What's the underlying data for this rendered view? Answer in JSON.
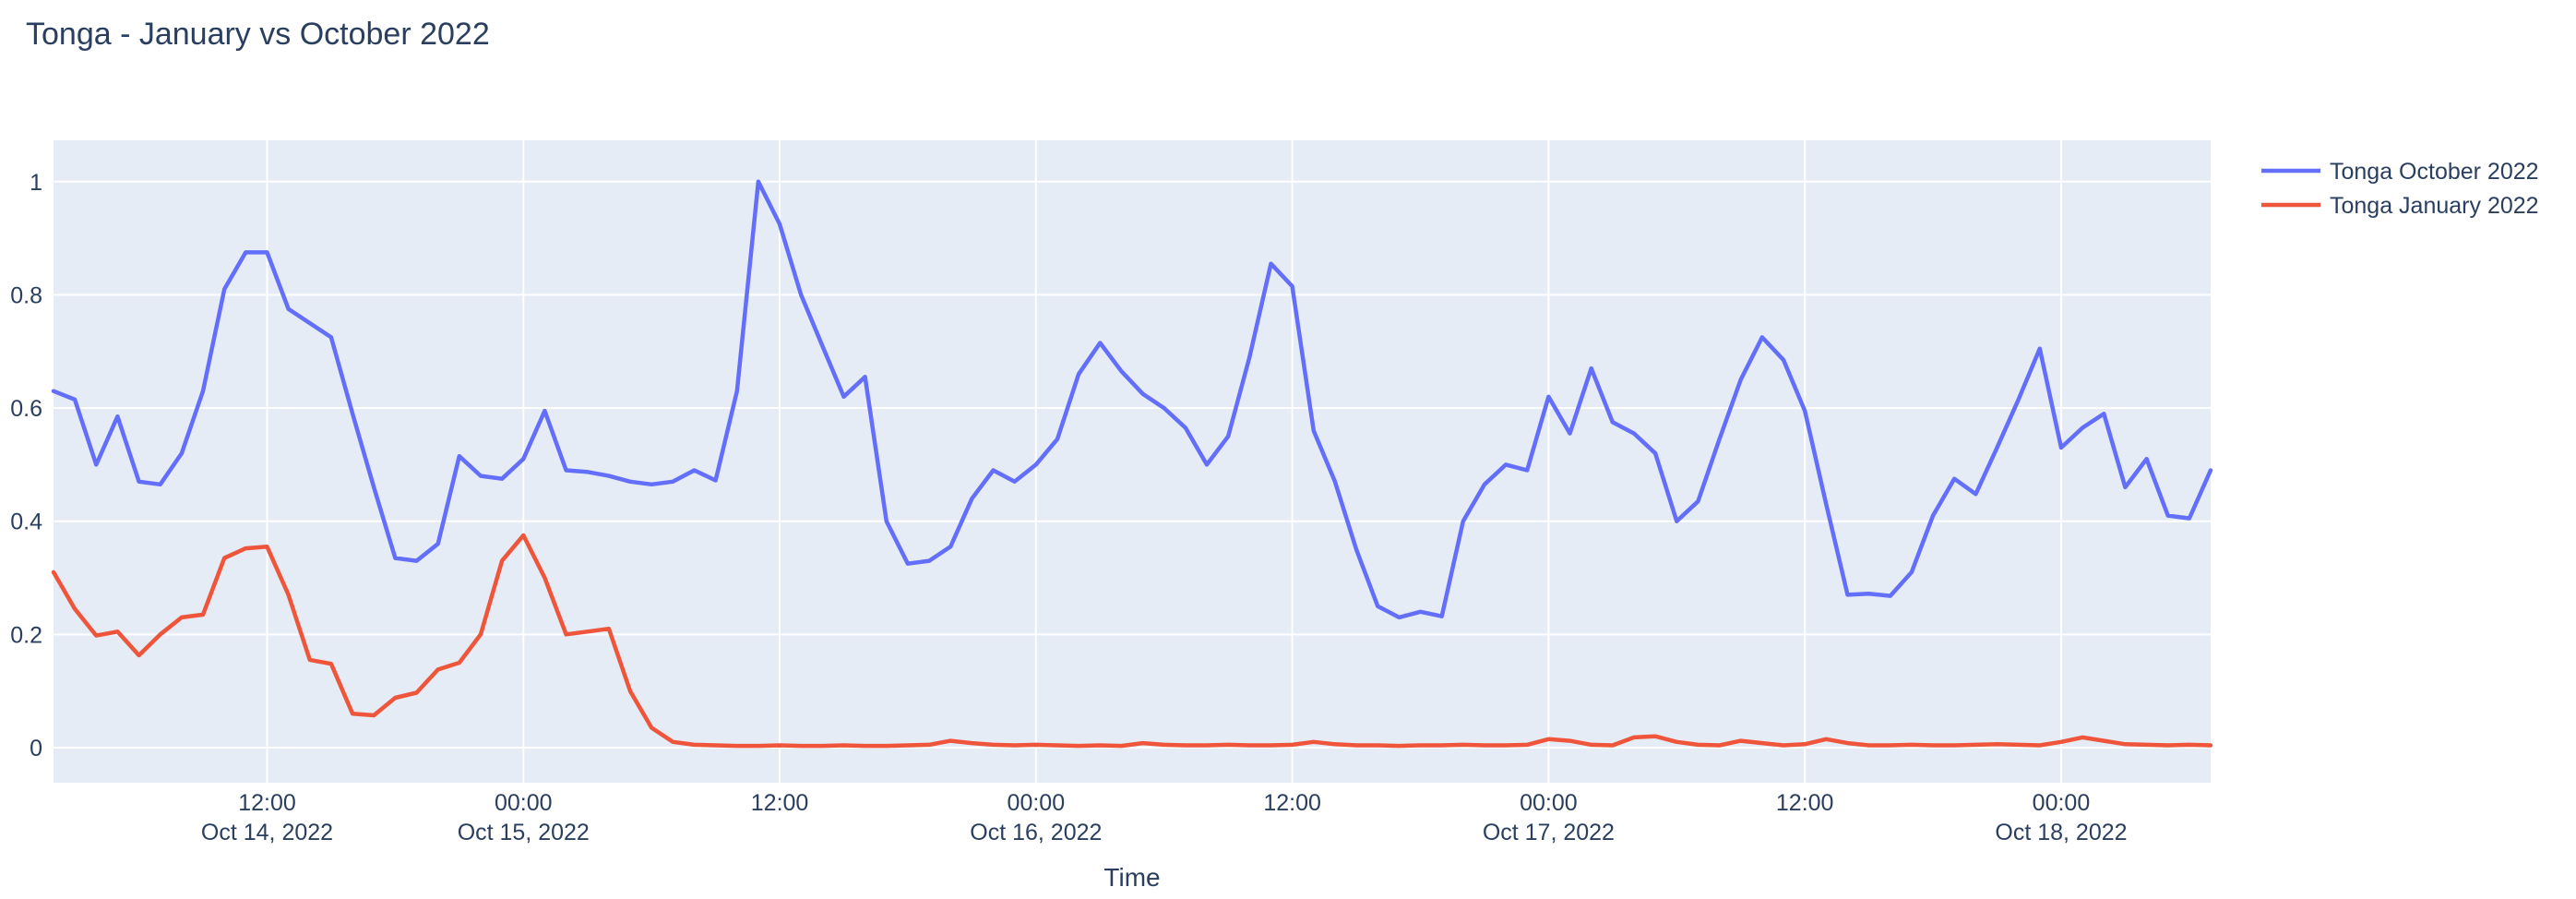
{
  "chart_data": {
    "type": "line",
    "title": "Tonga - January vs October 2022",
    "xlabel": "Time",
    "ylabel": "",
    "grid": true,
    "legend_position": "top-right-outside",
    "plot_bg_color": "#E5ECF6",
    "grid_color": "#FFFFFF",
    "text_color": "#2a3f5f",
    "x_start": "2022-10-14 02:00",
    "x_end": "2022-10-18 07:00",
    "x_step_hours": 1,
    "x_range_hours_after_oct14_midnight": [
      2,
      103
    ],
    "ylim": [
      -0.062,
      1.073
    ],
    "y_ticks": [
      0,
      0.2,
      0.4,
      0.6,
      0.8,
      1
    ],
    "x_ticks": [
      {
        "hour": 12,
        "time": "12:00",
        "date": "Oct 14, 2022"
      },
      {
        "hour": 24,
        "time": "00:00",
        "date": "Oct 15, 2022"
      },
      {
        "hour": 36,
        "time": "12:00",
        "date": ""
      },
      {
        "hour": 48,
        "time": "00:00",
        "date": "Oct 16, 2022"
      },
      {
        "hour": 60,
        "time": "12:00",
        "date": ""
      },
      {
        "hour": 72,
        "time": "00:00",
        "date": "Oct 17, 2022"
      },
      {
        "hour": 84,
        "time": "12:00",
        "date": ""
      },
      {
        "hour": 96,
        "time": "00:00",
        "date": "Oct 18, 2022"
      }
    ],
    "series": [
      {
        "name": "Tonga October 2022",
        "color": "#636EFA",
        "values": [
          0.63,
          0.615,
          0.5,
          0.585,
          0.47,
          0.465,
          0.52,
          0.63,
          0.81,
          0.875,
          0.875,
          0.775,
          0.75,
          0.725,
          0.59,
          0.46,
          0.335,
          0.33,
          0.36,
          0.515,
          0.48,
          0.475,
          0.51,
          0.595,
          0.49,
          0.487,
          0.48,
          0.47,
          0.465,
          0.47,
          0.49,
          0.472,
          0.63,
          1.0,
          0.925,
          0.8,
          0.71,
          0.62,
          0.655,
          0.4,
          0.325,
          0.33,
          0.355,
          0.44,
          0.49,
          0.47,
          0.5,
          0.545,
          0.66,
          0.715,
          0.665,
          0.625,
          0.6,
          0.565,
          0.5,
          0.55,
          0.69,
          0.855,
          0.815,
          0.56,
          0.47,
          0.35,
          0.25,
          0.23,
          0.24,
          0.232,
          0.4,
          0.465,
          0.5,
          0.49,
          0.62,
          0.555,
          0.67,
          0.575,
          0.555,
          0.52,
          0.4,
          0.435,
          0.545,
          0.65,
          0.725,
          0.685,
          0.595,
          0.43,
          0.27,
          0.272,
          0.268,
          0.31,
          0.41,
          0.475,
          0.448,
          0.53,
          0.615,
          0.705,
          0.53,
          0.565,
          0.59,
          0.46,
          0.51,
          0.41,
          0.405,
          0.49
        ]
      },
      {
        "name": "Tonga January 2022",
        "color": "#EF553B",
        "values": [
          0.31,
          0.245,
          0.198,
          0.205,
          0.163,
          0.2,
          0.23,
          0.235,
          0.335,
          0.352,
          0.355,
          0.27,
          0.155,
          0.148,
          0.06,
          0.057,
          0.088,
          0.097,
          0.138,
          0.15,
          0.2,
          0.33,
          0.375,
          0.3,
          0.2,
          0.205,
          0.21,
          0.1,
          0.035,
          0.01,
          0.005,
          0.004,
          0.003,
          0.003,
          0.004,
          0.003,
          0.003,
          0.004,
          0.003,
          0.003,
          0.004,
          0.005,
          0.012,
          0.008,
          0.005,
          0.004,
          0.005,
          0.004,
          0.003,
          0.004,
          0.003,
          0.008,
          0.005,
          0.004,
          0.004,
          0.005,
          0.004,
          0.004,
          0.005,
          0.01,
          0.006,
          0.004,
          0.004,
          0.003,
          0.004,
          0.004,
          0.005,
          0.004,
          0.004,
          0.005,
          0.015,
          0.012,
          0.005,
          0.004,
          0.018,
          0.02,
          0.01,
          0.005,
          0.004,
          0.012,
          0.008,
          0.004,
          0.006,
          0.015,
          0.008,
          0.004,
          0.004,
          0.005,
          0.004,
          0.004,
          0.005,
          0.006,
          0.005,
          0.004,
          0.01,
          0.018,
          0.012,
          0.006,
          0.005,
          0.004,
          0.005,
          0.004
        ]
      }
    ]
  }
}
